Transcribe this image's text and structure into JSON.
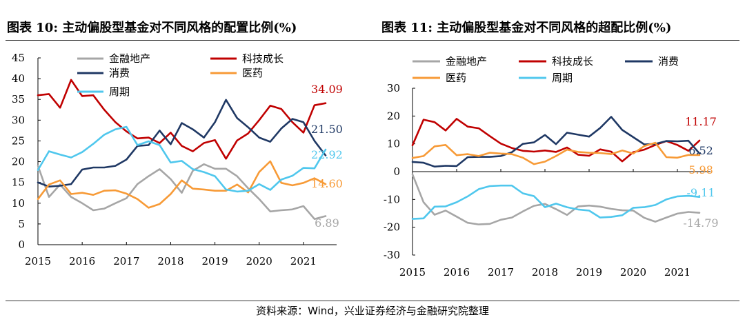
{
  "titles": {
    "left": "图表 10: 主动偏股型基金对不同风格的配置比例(%)",
    "right": "图表 11: 主动偏股型基金对不同风格的超配比例(%)"
  },
  "source": "资料来源：Wind，兴业证券经济与金融研究院整理",
  "colors": {
    "金融地产": "#a6a6a6",
    "科技成长": "#c00000",
    "消费": "#1f3864",
    "医药": "#f79a36",
    "周期": "#4fc7ed"
  },
  "chart_data": [
    {
      "type": "line",
      "title": "主动偏股型基金对不同风格的配置比例(%)",
      "ylim": [
        0,
        45
      ],
      "yticks": [
        0,
        5,
        10,
        15,
        20,
        25,
        30,
        35,
        40,
        45
      ],
      "xlim": [
        2015,
        2021.75
      ],
      "xticks": [
        "2015",
        "2016",
        "2017",
        "2018",
        "2019",
        "2020",
        "2021"
      ],
      "x": [
        2015,
        2015.25,
        2015.5,
        2015.75,
        2016,
        2016.25,
        2016.5,
        2016.75,
        2017,
        2017.25,
        2017.5,
        2017.75,
        2018,
        2018.25,
        2018.5,
        2018.75,
        2019,
        2019.25,
        2019.5,
        2019.75,
        2020,
        2020.25,
        2020.5,
        2020.75,
        2021,
        2021.25,
        2021.5
      ],
      "series": [
        {
          "name": "金融地产",
          "values": [
            19.0,
            11.5,
            14.5,
            11.5,
            10.0,
            8.3,
            8.7,
            10.0,
            11.2,
            14.6,
            16.5,
            18.2,
            15.8,
            12.5,
            17.8,
            19.4,
            18.3,
            18.3,
            16.5,
            13.6,
            11.0,
            8.0,
            8.3,
            8.5,
            9.3,
            6.2,
            6.89
          ]
        },
        {
          "name": "科技成长",
          "values": [
            36.0,
            36.3,
            33.0,
            39.7,
            35.8,
            36.0,
            32.5,
            29.5,
            27.3,
            25.6,
            25.8,
            24.5,
            27.0,
            23.8,
            22.5,
            24.5,
            25.2,
            20.7,
            25.1,
            26.8,
            30.0,
            33.5,
            32.7,
            29.5,
            27.0,
            33.6,
            34.09
          ]
        },
        {
          "name": "消费",
          "values": [
            15.0,
            14.0,
            14.2,
            14.6,
            18.1,
            18.6,
            18.6,
            19.0,
            20.5,
            23.8,
            24.0,
            27.5,
            24.2,
            29.3,
            27.8,
            25.8,
            29.5,
            34.9,
            30.5,
            28.3,
            25.8,
            24.8,
            28.0,
            30.3,
            29.5,
            25.0,
            21.5
          ]
        },
        {
          "name": "医药",
          "values": [
            11.0,
            14.5,
            15.5,
            12.2,
            12.5,
            12.0,
            13.0,
            13.1,
            12.3,
            11.0,
            8.9,
            9.8,
            12.2,
            15.5,
            13.5,
            13.3,
            13.0,
            13.0,
            14.5,
            12.6,
            17.5,
            20.1,
            14.9,
            14.3,
            14.9,
            16.0,
            14.6
          ]
        },
        {
          "name": "周期",
          "values": [
            18.0,
            22.5,
            21.7,
            21.0,
            22.3,
            24.3,
            26.5,
            27.8,
            28.4,
            24.0,
            24.9,
            24.0,
            19.8,
            20.2,
            18.2,
            17.5,
            16.5,
            13.3,
            12.8,
            13.0,
            14.6,
            13.2,
            15.7,
            16.6,
            18.5,
            18.4,
            22.92
          ]
        }
      ],
      "legend": [
        {
          "label": "金融地产",
          "series": "金融地产"
        },
        {
          "label": "科技成长",
          "series": "科技成长"
        },
        {
          "label": "消费",
          "series": "消费"
        },
        {
          "label": "医药",
          "series": "医药"
        },
        {
          "label": "周期",
          "series": "周期"
        }
      ],
      "annotations": [
        {
          "text": "34.09",
          "series": "科技成长"
        },
        {
          "text": "21.50",
          "series": "消费"
        },
        {
          "text": "22.92",
          "series": "周期"
        },
        {
          "text": "14.60",
          "series": "医药"
        },
        {
          "text": "6.89",
          "series": "金融地产"
        }
      ]
    },
    {
      "type": "line",
      "title": "主动偏股型基金对不同风格的超配比例(%)",
      "ylim": [
        -30,
        30
      ],
      "yticks": [
        -30,
        -20,
        -10,
        0,
        10,
        20,
        30
      ],
      "xlim": [
        2015,
        2021.75
      ],
      "xticks": [
        "2015",
        "2016",
        "2017",
        "2018",
        "2019",
        "2020",
        "2021"
      ],
      "x": [
        2015,
        2015.25,
        2015.5,
        2015.75,
        2016,
        2016.25,
        2016.5,
        2016.75,
        2017,
        2017.25,
        2017.5,
        2017.75,
        2018,
        2018.25,
        2018.5,
        2018.75,
        2019,
        2019.25,
        2019.5,
        2019.75,
        2020,
        2020.25,
        2020.5,
        2020.75,
        2021,
        2021.25,
        2021.5
      ],
      "series": [
        {
          "name": "金融地产",
          "values": [
            -1.0,
            -11.0,
            -15.5,
            -14.0,
            -16.2,
            -18.4,
            -19.0,
            -18.8,
            -17.3,
            -16.5,
            -14.3,
            -12.3,
            -11.6,
            -13.5,
            -15.6,
            -12.5,
            -12.2,
            -12.6,
            -13.4,
            -13.9,
            -14.0,
            -16.6,
            -18.0,
            -16.5,
            -15.1,
            -14.5,
            -14.79
          ]
        },
        {
          "name": "科技成长",
          "values": [
            9.5,
            18.7,
            17.8,
            14.8,
            19.0,
            16.2,
            15.6,
            12.8,
            10.1,
            8.5,
            7.5,
            7.2,
            7.6,
            7.1,
            8.7,
            6.1,
            5.7,
            8.0,
            7.2,
            3.7,
            7.0,
            7.9,
            9.6,
            11.0,
            9.6,
            7.5,
            11.17
          ]
        },
        {
          "name": "消费",
          "values": [
            3.5,
            3.2,
            1.8,
            2.1,
            2.0,
            5.2,
            5.3,
            5.3,
            5.6,
            7.0,
            10.0,
            10.5,
            13.2,
            9.9,
            14.0,
            13.3,
            12.6,
            15.7,
            19.7,
            15.0,
            12.4,
            9.8,
            10.0,
            11.0,
            10.9,
            11.1,
            6.52
          ]
        },
        {
          "name": "医药",
          "values": [
            4.9,
            5.6,
            9.1,
            9.6,
            5.9,
            6.3,
            5.6,
            6.8,
            6.5,
            6.3,
            5.0,
            2.7,
            3.6,
            5.6,
            7.9,
            7.1,
            6.8,
            6.7,
            6.3,
            7.6,
            6.5,
            9.2,
            10.4,
            5.2,
            5.0,
            6.0,
            5.98
          ]
        },
        {
          "name": "周期",
          "values": [
            -17.0,
            -16.8,
            -12.6,
            -12.5,
            -11.0,
            -8.9,
            -6.3,
            -5.2,
            -5.0,
            -5.0,
            -7.8,
            -8.8,
            -12.8,
            -11.5,
            -12.8,
            -13.6,
            -14.0,
            -16.5,
            -16.3,
            -15.7,
            -13.0,
            -12.8,
            -12.0,
            -10.0,
            -8.9,
            -8.7,
            -9.11
          ]
        }
      ],
      "legend": [
        {
          "label": "金融地产",
          "series": "金融地产"
        },
        {
          "label": "科技成长",
          "series": "科技成长"
        },
        {
          "label": "消费",
          "series": "消费"
        },
        {
          "label": "医药",
          "series": "医药"
        },
        {
          "label": "周期",
          "series": "周期"
        }
      ],
      "annotations": [
        {
          "text": "11.17",
          "series": "科技成长"
        },
        {
          "text": "6.52",
          "series": "消费"
        },
        {
          "text": "5.98",
          "series": "医药"
        },
        {
          "text": "-9.11",
          "series": "周期"
        },
        {
          "text": "-14.79",
          "series": "金融地产"
        }
      ]
    }
  ]
}
